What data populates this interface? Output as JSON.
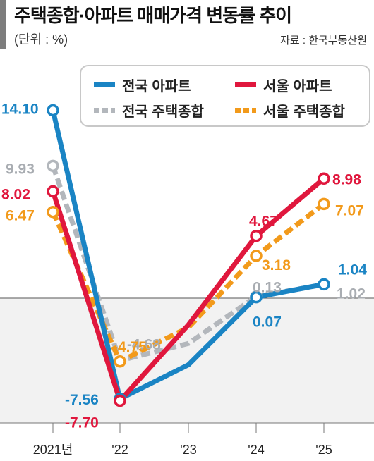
{
  "title": "주택종합·아파트 매매가격 변동률 추이",
  "unit": "(단위 : %)",
  "source": "자료 : 한국부동산원",
  "chart_data": {
    "type": "line",
    "categories": [
      "2021년",
      "'22",
      "'23",
      "'24",
      "'25"
    ],
    "ylim": [
      -9.5,
      15.0
    ],
    "series": [
      {
        "name": "전국 아파트",
        "color": "#1a84c4",
        "style": "solid",
        "values": [
          14.1,
          -7.56,
          -5.0,
          0.07,
          1.04
        ],
        "labels": [
          "14.10",
          "-7.56",
          "",
          "0.07",
          "1.04"
        ]
      },
      {
        "name": "서울 아파트",
        "color": "#e0173d",
        "style": "solid",
        "values": [
          8.02,
          -7.7,
          -2.0,
          4.67,
          8.98
        ],
        "labels": [
          "8.02",
          "-7.70",
          "",
          "4.67",
          "8.98"
        ]
      },
      {
        "name": "전국 주택종합",
        "color": "#b3b7bc",
        "style": "dashed",
        "values": [
          9.93,
          -4.68,
          -3.4,
          0.13,
          1.02
        ],
        "labels": [
          "9.93",
          "-4.68",
          "",
          "0.13",
          "1.02"
        ]
      },
      {
        "name": "서울 주택종합",
        "color": "#f29a1b",
        "style": "dashed",
        "values": [
          6.47,
          -4.75,
          -2.2,
          3.18,
          7.07
        ],
        "labels": [
          "6.47",
          "-4.75",
          "",
          "3.18",
          "7.07"
        ]
      }
    ],
    "markers": {
      "전국 아파트": [
        0,
        1,
        3,
        4
      ],
      "서울 아파트": [
        0,
        1,
        3,
        4
      ],
      "전국 주택종합": [
        0,
        3
      ],
      "서울 주택종합": [
        0,
        1,
        3,
        4
      ]
    },
    "zero_line": true,
    "legend": "top-right"
  }
}
